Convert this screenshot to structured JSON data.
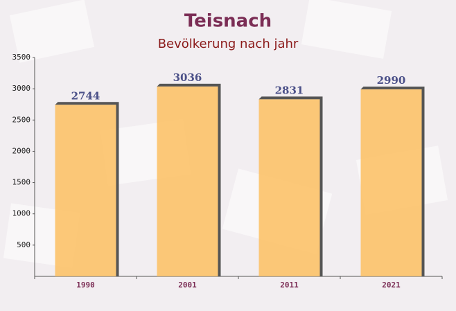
{
  "chart_data": {
    "type": "bar",
    "title": "Teisnach",
    "subtitle": "Bevölkerung nach jahr",
    "categories": [
      "1990",
      "2001",
      "2011",
      "2021"
    ],
    "values": [
      2744,
      3036,
      2831,
      2990
    ],
    "color": "#fdc062",
    "ylim": [
      0,
      3500
    ],
    "yticks": [
      500,
      1000,
      1500,
      2000,
      2500,
      3000,
      3500
    ]
  }
}
